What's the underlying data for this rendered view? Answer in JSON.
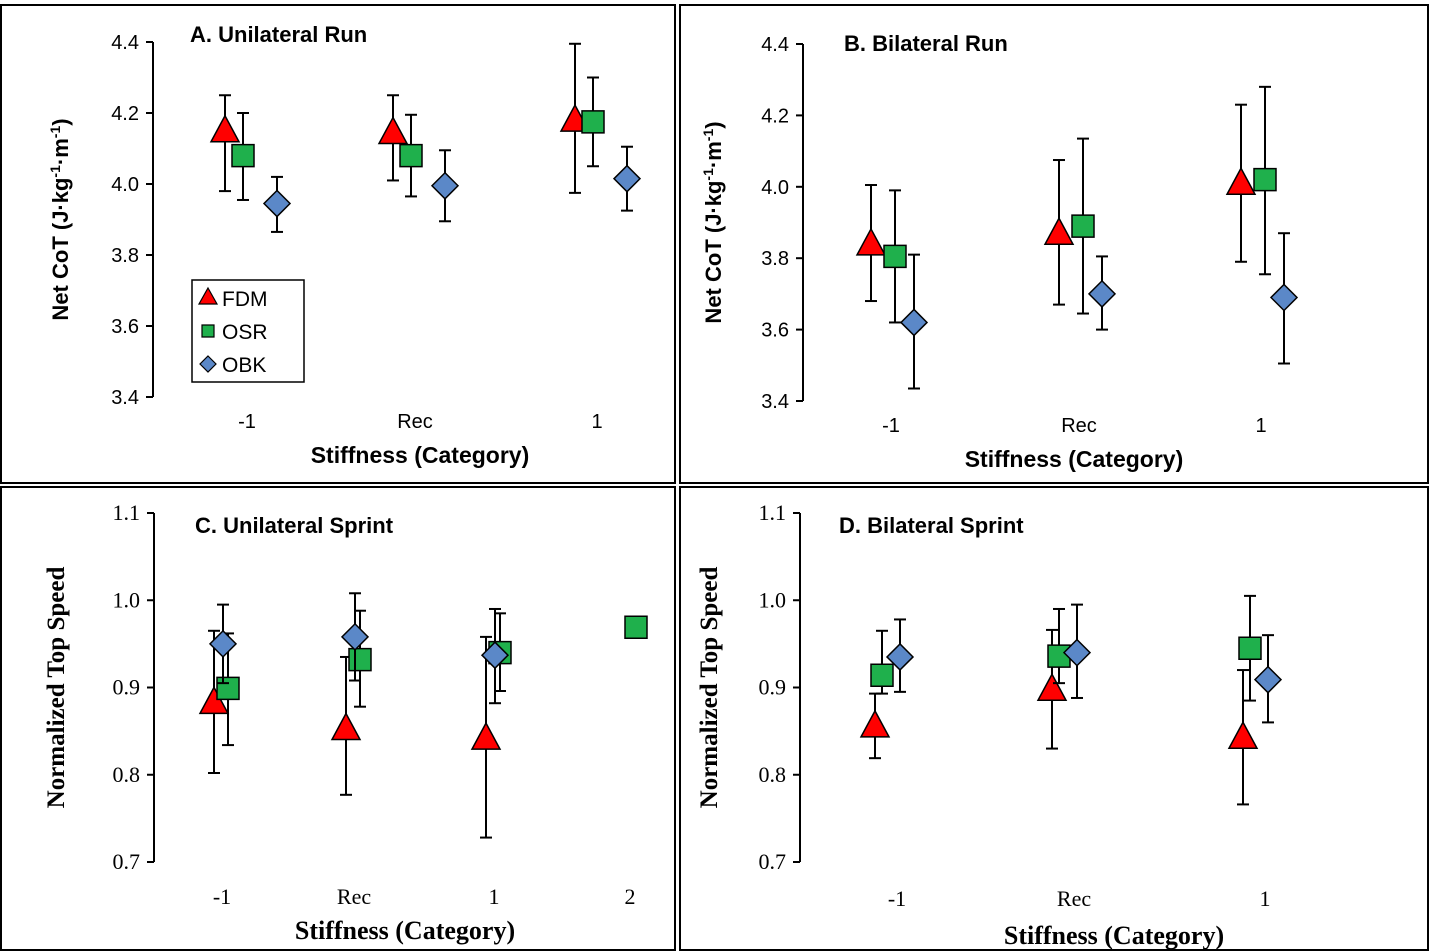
{
  "colors": {
    "FDM": "#ff0000",
    "OSR": "#1fb04c",
    "OBK": "#5b88c8",
    "axis": "#000000",
    "frame": "#000000"
  },
  "chart_data": [
    {
      "type": "scatter",
      "title": "A. Unilateral Run",
      "xlabel": "Stiffness (Category)",
      "ylabel_parts": [
        "Net CoT (J·kg",
        "-1",
        "·m",
        "-1",
        ")"
      ],
      "categories": [
        "-1",
        "Rec",
        "1"
      ],
      "ylim": [
        3.4,
        4.4
      ],
      "yticks": [
        "3.4",
        "3.6",
        "3.8",
        "4.0",
        "4.2",
        "4.4"
      ],
      "grid": false,
      "legend": {
        "placement": "bottom-left",
        "entries": [
          "FDM",
          "OSR",
          "OBK"
        ]
      },
      "series": [
        {
          "name": "FDM",
          "marker": "triangle",
          "values": [
            4.15,
            4.145,
            4.18
          ],
          "lower": [
            3.98,
            4.01,
            3.975
          ],
          "upper": [
            4.25,
            4.25,
            4.395
          ]
        },
        {
          "name": "OSR",
          "marker": "square",
          "values": [
            4.08,
            4.08,
            4.175
          ],
          "lower": [
            3.955,
            3.965,
            4.05
          ],
          "upper": [
            4.2,
            4.195,
            4.3
          ]
        },
        {
          "name": "OBK",
          "marker": "diamond",
          "values": [
            3.945,
            3.995,
            4.015
          ],
          "lower": [
            3.865,
            3.895,
            3.925
          ],
          "upper": [
            4.02,
            4.095,
            4.105
          ]
        }
      ]
    },
    {
      "type": "scatter",
      "title": "B. Bilateral Run",
      "xlabel": "Stiffness (Category)",
      "ylabel_parts": [
        "Net CoT (J·kg",
        "-1",
        "·m",
        "-1",
        ")"
      ],
      "categories": [
        "-1",
        "Rec",
        "1"
      ],
      "ylim": [
        3.4,
        4.4
      ],
      "yticks": [
        "3.4",
        "3.6",
        "3.8",
        "4.0",
        "4.2",
        "4.4"
      ],
      "grid": false,
      "series": [
        {
          "name": "FDM",
          "marker": "triangle",
          "values": [
            3.84,
            3.87,
            4.01
          ],
          "lower": [
            3.68,
            3.67,
            3.79
          ],
          "upper": [
            4.005,
            4.075,
            4.23
          ]
        },
        {
          "name": "OSR",
          "marker": "square",
          "values": [
            3.805,
            3.89,
            4.02
          ],
          "lower": [
            3.62,
            3.645,
            3.755
          ],
          "upper": [
            3.99,
            4.135,
            4.28
          ]
        },
        {
          "name": "OBK",
          "marker": "diamond",
          "values": [
            3.62,
            3.7,
            3.69
          ],
          "lower": [
            3.435,
            3.6,
            3.505
          ],
          "upper": [
            3.81,
            3.805,
            3.87
          ]
        }
      ]
    },
    {
      "type": "scatter",
      "title": "C. Unilateral Sprint",
      "xlabel": "Stiffness (Category)",
      "ylabel": "Normalized Top Speed",
      "categories": [
        "-1",
        "Rec",
        "1",
        "2"
      ],
      "ylim": [
        0.7,
        1.1
      ],
      "yticks": [
        "0.7",
        "0.8",
        "0.9",
        "1.0",
        "1.1"
      ],
      "grid": false,
      "series": [
        {
          "name": "FDM",
          "marker": "triangle",
          "values": [
            0.883,
            0.853,
            0.842,
            null
          ],
          "lower": [
            0.802,
            0.777,
            0.728,
            null
          ],
          "upper": [
            0.965,
            0.935,
            0.958,
            null
          ]
        },
        {
          "name": "OSR",
          "marker": "square",
          "values": [
            0.899,
            0.932,
            0.94,
            0.969
          ],
          "lower": [
            0.834,
            0.878,
            0.896,
            null
          ],
          "upper": [
            0.962,
            0.988,
            0.985,
            null
          ]
        },
        {
          "name": "OBK",
          "marker": "diamond",
          "values": [
            0.95,
            0.958,
            0.937,
            null
          ],
          "lower": [
            0.905,
            0.908,
            0.882,
            null
          ],
          "upper": [
            0.995,
            1.008,
            0.99,
            null
          ]
        }
      ]
    },
    {
      "type": "scatter",
      "title": "D. Bilateral Sprint",
      "xlabel": "Stiffness (Category)",
      "ylabel": "Normalized Top Speed",
      "categories": [
        "-1",
        "Rec",
        "1"
      ],
      "ylim": [
        0.7,
        1.1
      ],
      "yticks": [
        "0.7",
        "0.8",
        "0.9",
        "1.0",
        "1.1"
      ],
      "grid": false,
      "series": [
        {
          "name": "FDM",
          "marker": "triangle",
          "values": [
            0.856,
            0.898,
            0.843
          ],
          "lower": [
            0.819,
            0.83,
            0.766
          ],
          "upper": [
            0.893,
            0.966,
            0.92
          ]
        },
        {
          "name": "OSR",
          "marker": "square",
          "values": [
            0.914,
            0.936,
            0.945
          ],
          "lower": [
            0.893,
            0.905,
            0.885
          ],
          "upper": [
            0.965,
            0.99,
            1.005
          ]
        },
        {
          "name": "OBK",
          "marker": "diamond",
          "values": [
            0.935,
            0.94,
            0.909
          ],
          "lower": [
            0.895,
            0.888,
            0.86
          ],
          "upper": [
            0.978,
            0.995,
            0.96
          ]
        }
      ]
    }
  ]
}
